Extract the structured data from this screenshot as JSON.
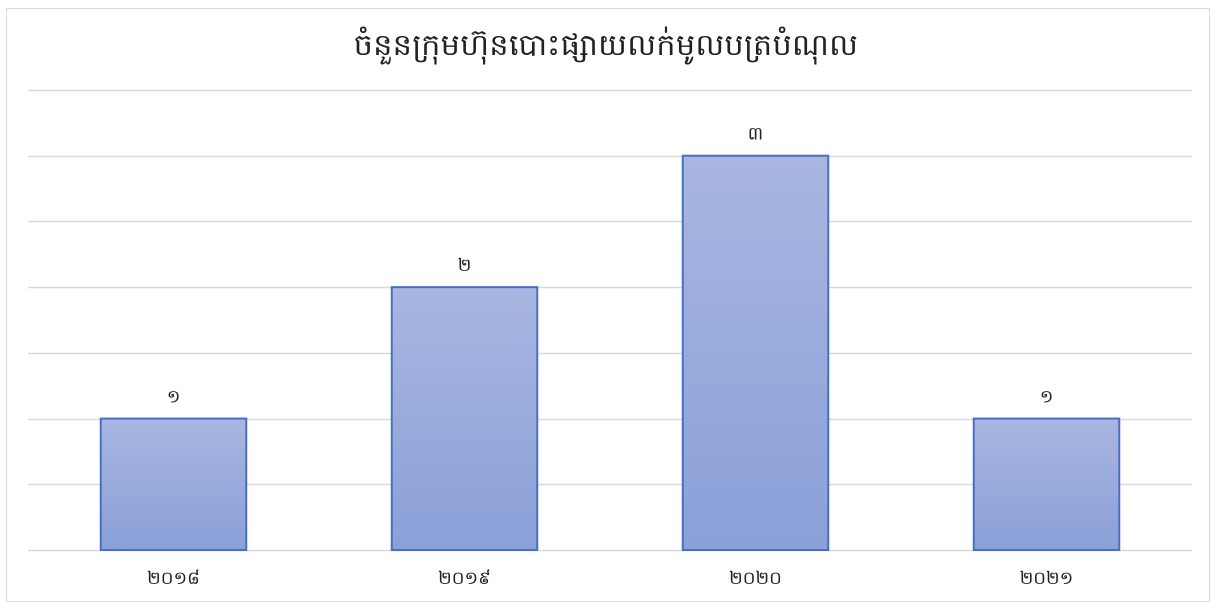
{
  "chart_data": {
    "type": "bar",
    "title": "ចំនួនក្រុមហ៊ុនបោះផ្សាយលក់មូលបត្របំណុល",
    "xlabel": "",
    "ylabel": "",
    "categories": [
      "២០១៨",
      "២០១៩",
      "២០២០",
      "២០២១"
    ],
    "values": [
      1,
      2,
      3,
      1
    ],
    "value_labels": [
      "១",
      "២",
      "៣",
      "១"
    ],
    "ylim": [
      0,
      3.5
    ],
    "grid": true,
    "legend": "none",
    "colors": {
      "bar_top": "#a8b6e0",
      "bar_bottom": "#8aa0d8",
      "bar_border": "#4a6fc0",
      "grid": "#d9d9d9"
    }
  }
}
